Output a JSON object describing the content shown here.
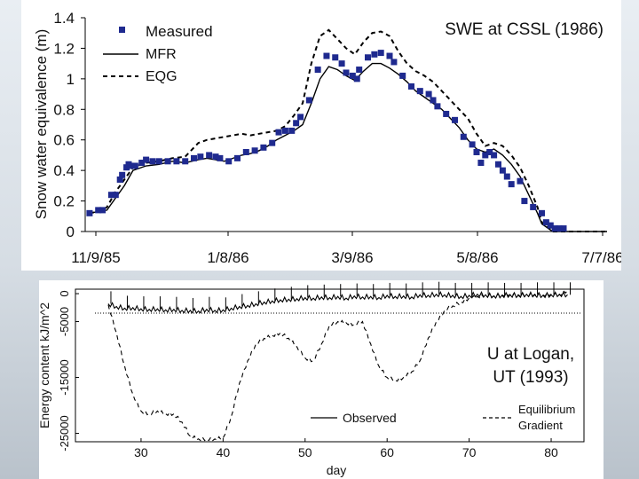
{
  "charts": [
    {
      "id": "swe",
      "type": "line",
      "title": "SWE at CSSL (1986)",
      "ylabel": "Snow water equivalence (m)",
      "xlabel": "",
      "x_tick_labels": [
        "11/9/85",
        "1/8/86",
        "3/9/86",
        "5/8/86",
        "7/7/86"
      ],
      "y_tick_labels": [
        "0",
        "0.2",
        "0.4",
        "0.6",
        "0.8",
        "1",
        "1.2",
        "1.4"
      ],
      "xlim": [
        0,
        240
      ],
      "ylim": [
        0,
        1.4
      ],
      "legend": {
        "placement": "top-left",
        "entries": [
          {
            "label": "Measured",
            "style": "square-marker",
            "color": "#1f2a8f"
          },
          {
            "label": "MFR",
            "style": "solid",
            "color": "#000000"
          },
          {
            "label": "EQG",
            "style": "dashed",
            "color": "#000000"
          }
        ]
      },
      "series": [
        {
          "name": "Measured",
          "kind": "scatter",
          "color": "#1f2a8f",
          "x": [
            2,
            6,
            8,
            12,
            14,
            16,
            17,
            19,
            20,
            21,
            23,
            26,
            28,
            31,
            34,
            38,
            42,
            46,
            50,
            53,
            57,
            60,
            62,
            66,
            70,
            74,
            78,
            82,
            86,
            89,
            92,
            95,
            97,
            99,
            103,
            107,
            111,
            115,
            118,
            120,
            123,
            125,
            126,
            130,
            133,
            136,
            140,
            142,
            146,
            150,
            154,
            158,
            160,
            162,
            166,
            170,
            174,
            178,
            180,
            182,
            184,
            186,
            188,
            190,
            192,
            194,
            196,
            200,
            202,
            206,
            210,
            212,
            214,
            216,
            218,
            220
          ],
          "y": [
            0.12,
            0.14,
            0.14,
            0.24,
            0.24,
            0.34,
            0.37,
            0.42,
            0.44,
            0.43,
            0.43,
            0.45,
            0.47,
            0.46,
            0.46,
            0.46,
            0.46,
            0.46,
            0.48,
            0.49,
            0.5,
            0.49,
            0.48,
            0.46,
            0.48,
            0.52,
            0.53,
            0.55,
            0.58,
            0.65,
            0.66,
            0.66,
            0.71,
            0.75,
            0.86,
            1.06,
            1.15,
            1.14,
            1.1,
            1.04,
            1.02,
            1.0,
            1.06,
            1.14,
            1.16,
            1.17,
            1.15,
            1.11,
            1.02,
            0.95,
            0.92,
            0.9,
            0.86,
            0.82,
            0.77,
            0.73,
            0.62,
            0.57,
            0.52,
            0.45,
            0.5,
            0.52,
            0.5,
            0.44,
            0.4,
            0.36,
            0.31,
            0.33,
            0.2,
            0.16,
            0.12,
            0.06,
            0.04,
            0.02,
            0.02,
            0.02
          ]
        },
        {
          "name": "MFR",
          "kind": "line",
          "color": "#000000",
          "dash": "",
          "x": [
            2,
            6,
            10,
            14,
            18,
            22,
            28,
            34,
            40,
            46,
            52,
            56,
            60,
            64,
            68,
            72,
            76,
            80,
            84,
            88,
            92,
            96,
            100,
            104,
            108,
            112,
            116,
            120,
            124,
            128,
            132,
            136,
            140,
            144,
            148,
            152,
            156,
            160,
            164,
            168,
            172,
            176,
            180,
            184,
            188,
            192,
            196,
            200,
            204,
            208,
            210,
            215,
            220,
            228,
            240
          ],
          "y": [
            0.12,
            0.13,
            0.14,
            0.22,
            0.3,
            0.4,
            0.43,
            0.44,
            0.46,
            0.45,
            0.47,
            0.48,
            0.47,
            0.46,
            0.48,
            0.5,
            0.51,
            0.53,
            0.56,
            0.6,
            0.63,
            0.66,
            0.7,
            0.84,
            1.0,
            1.08,
            1.06,
            1.02,
            0.99,
            1.05,
            1.1,
            1.1,
            1.07,
            1.03,
            0.98,
            0.92,
            0.88,
            0.84,
            0.8,
            0.74,
            0.68,
            0.6,
            0.54,
            0.52,
            0.54,
            0.5,
            0.44,
            0.36,
            0.24,
            0.12,
            0.05,
            0.0,
            0.0,
            0.0,
            0.0
          ]
        },
        {
          "name": "EQG",
          "kind": "line",
          "color": "#000000",
          "dash": "5,4",
          "x": [
            2,
            6,
            10,
            14,
            18,
            22,
            28,
            34,
            40,
            46,
            52,
            56,
            60,
            64,
            68,
            72,
            76,
            80,
            84,
            88,
            92,
            96,
            100,
            104,
            108,
            112,
            116,
            120,
            124,
            128,
            132,
            136,
            140,
            144,
            148,
            152,
            156,
            160,
            164,
            168,
            172,
            176,
            180,
            184,
            188,
            192,
            196,
            200,
            204,
            208,
            210,
            215,
            220,
            228,
            240
          ],
          "y": [
            0.12,
            0.13,
            0.16,
            0.26,
            0.34,
            0.42,
            0.45,
            0.46,
            0.48,
            0.49,
            0.58,
            0.6,
            0.61,
            0.62,
            0.63,
            0.64,
            0.63,
            0.64,
            0.65,
            0.66,
            0.69,
            0.76,
            0.84,
            1.1,
            1.28,
            1.32,
            1.26,
            1.2,
            1.16,
            1.24,
            1.3,
            1.31,
            1.28,
            1.18,
            1.1,
            1.05,
            1.02,
            0.98,
            0.92,
            0.86,
            0.8,
            0.74,
            0.64,
            0.56,
            0.58,
            0.56,
            0.5,
            0.42,
            0.3,
            0.16,
            0.06,
            0.0,
            0.0,
            0.0,
            0.0
          ]
        }
      ]
    },
    {
      "id": "energy",
      "type": "line",
      "title": "U at Logan, UT (1993)",
      "ylabel": "Energy content kJ/m^2",
      "xlabel": "day",
      "x_tick_labels": [
        "30",
        "40",
        "50",
        "60",
        "70",
        "80"
      ],
      "y_tick_labels": [
        "-25000",
        "-15000",
        "-5000",
        "0"
      ],
      "xlim": [
        22,
        84
      ],
      "ylim": [
        -26500,
        800
      ],
      "legend": {
        "placement": "bottom-right",
        "entries": [
          {
            "label": "Observed",
            "style": "solid",
            "color": "#000000"
          },
          {
            "label": "Equilibrium Gradient",
            "style": "dashed",
            "color": "#000000"
          }
        ]
      },
      "series": [
        {
          "name": "Observed",
          "kind": "line",
          "color": "#000000",
          "dash": "",
          "x": [
            26,
            27,
            28,
            29,
            30,
            31,
            32,
            33,
            34,
            35,
            36,
            37,
            38,
            39,
            40,
            41,
            42,
            43,
            44,
            45,
            46,
            47,
            48,
            49,
            50,
            51,
            52,
            53,
            54,
            55,
            56,
            57,
            58,
            59,
            60,
            61,
            62,
            63,
            64,
            65,
            66,
            67,
            68,
            69,
            70,
            71,
            72,
            73,
            74,
            75,
            76,
            77,
            78,
            79,
            80,
            81,
            82
          ],
          "y": [
            -1800,
            -2300,
            -2600,
            -2500,
            -2700,
            -2800,
            -2700,
            -2900,
            -2800,
            -3000,
            -3000,
            -3100,
            -2800,
            -3000,
            -2900,
            -2600,
            -2300,
            -2100,
            -1800,
            -1500,
            -1300,
            -1100,
            -1000,
            -900,
            -700,
            -800,
            -600,
            -700,
            -500,
            -800,
            -400,
            -600,
            -500,
            -700,
            -300,
            -500,
            -400,
            -600,
            -200,
            -300,
            -100,
            -200,
            -300,
            -500,
            -300,
            -100,
            -200,
            -400,
            -300,
            -200,
            -300,
            -100,
            -200,
            -300,
            -200,
            -100,
            -200
          ]
        },
        {
          "name": "Equilibrium Gradient",
          "kind": "line",
          "color": "#000000",
          "dash": "5,4",
          "x": [
            26,
            27,
            28,
            29,
            30,
            31,
            32,
            33,
            34,
            35,
            36,
            37,
            38,
            39,
            40,
            41,
            42,
            43,
            44,
            45,
            46,
            47,
            48,
            49,
            50,
            51,
            52,
            53,
            54,
            55,
            56,
            57,
            58,
            59,
            60,
            61,
            62,
            63,
            64,
            65,
            66,
            67,
            68,
            69,
            70,
            71,
            72,
            73,
            74,
            75,
            76,
            77,
            78,
            79,
            80,
            81,
            82
          ],
          "y": [
            -2000,
            -7000,
            -13000,
            -18000,
            -21000,
            -21500,
            -21000,
            -21500,
            -21500,
            -23000,
            -25500,
            -26000,
            -26000,
            -26000,
            -25800,
            -22000,
            -16000,
            -12000,
            -9000,
            -8000,
            -7500,
            -7000,
            -8000,
            -9500,
            -11500,
            -12000,
            -9000,
            -5500,
            -5000,
            -5200,
            -5500,
            -5000,
            -9000,
            -13000,
            -15000,
            -15500,
            -15000,
            -14000,
            -12000,
            -8000,
            -5000,
            -3000,
            -2200,
            -1500,
            -800,
            -500,
            -300,
            -400,
            -200,
            -100,
            -200,
            -300,
            -100,
            -200,
            -100,
            -200,
            600
          ]
        }
      ]
    }
  ],
  "page": {
    "swe_title": "SWE at CSSL (1986)",
    "swe_ylabel": "Snow water equivalence (m)",
    "swe_legend_measured": "Measured",
    "swe_legend_mfr": "MFR",
    "swe_legend_eqg": "EQG",
    "energy_title_line1": "U at Logan,",
    "energy_title_line2": "UT (1993)",
    "energy_ylabel": "Energy content kJ/m^2",
    "energy_xlabel": "day",
    "energy_legend_observed": "Observed",
    "energy_legend_eq_line1": "Equilibrium",
    "energy_legend_eq_line2": "Gradient"
  },
  "colors": {
    "measured_marker": "#1f2a8f",
    "line": "#000000",
    "panel_background": "#ffffff"
  }
}
